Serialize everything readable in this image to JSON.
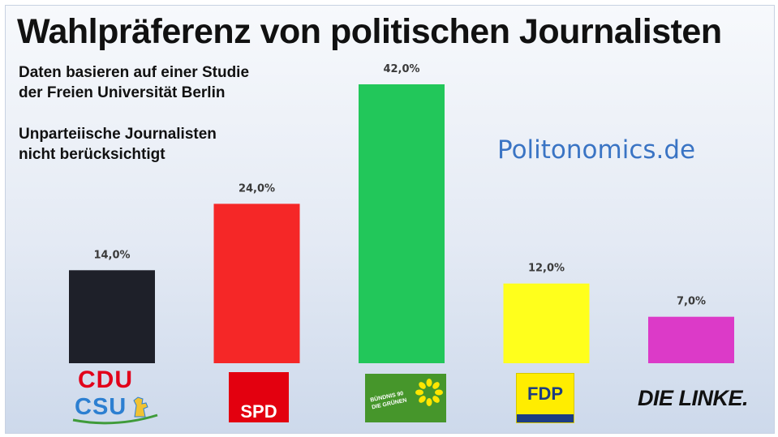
{
  "chart_data": {
    "type": "bar",
    "title": "Wahlpräferenz von politischen Journalisten",
    "notes": [
      [
        "Daten basieren auf einer Studie",
        "der Freien Universität Berlin"
      ],
      [
        "Unparteiische Journalisten",
        "nicht berücksichtigt"
      ]
    ],
    "source": "Politonomics.de",
    "categories": [
      "CDU/CSU",
      "SPD",
      "Bündnis 90/Die Grünen",
      "FDP",
      "Die Linke"
    ],
    "values": [
      14.0,
      24.0,
      42.0,
      12.0,
      7.0
    ],
    "value_labels": [
      "14,0%",
      "24,0%",
      "42,0%",
      "12,0%",
      "7,0%"
    ],
    "colors": [
      "#1e2029",
      "#f52727",
      "#22c75a",
      "#ffff1c",
      "#dc3ac8"
    ],
    "ylim": [
      0,
      42
    ],
    "grid": false,
    "legend": "none"
  },
  "logos": {
    "cdu": "CDU",
    "csu": "CSU",
    "spd": "SPD",
    "gruene_line1": "BÜNDNIS 90",
    "gruene_line2": "DIE GRÜNEN",
    "fdp": "FDP",
    "linke": "DIE LINKE."
  },
  "icons": {
    "csu": "lion-icon",
    "gruene": "sunflower-icon"
  }
}
